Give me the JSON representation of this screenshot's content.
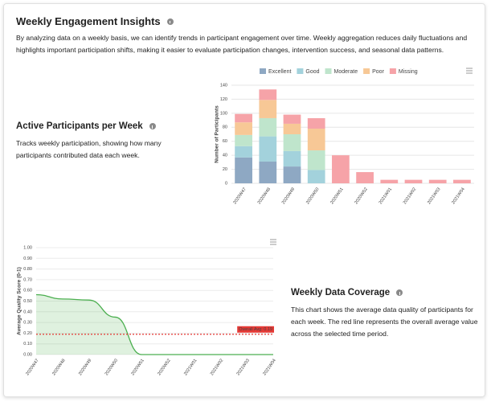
{
  "header": {
    "title": "Weekly Engagement Insights",
    "description": "By analyzing data on a weekly basis, we can identify trends in participant engagement over time. Weekly aggregation reduces daily fluctuations and highlights important participation shifts, making it easier to evaluate participation changes, intervention success, and seasonal data patterns."
  },
  "sections": [
    {
      "title": "Active Participants per Week",
      "description": "Tracks weekly participation, showing how many participants contributed data each week."
    },
    {
      "title": "Weekly Data Coverage",
      "description": "This chart shows the average data quality of participants for each week. The red line represents the overall average value across the selected time period."
    }
  ],
  "chart_data": [
    {
      "type": "bar",
      "stacked": true,
      "ylabel": "Number of Participants",
      "categories": [
        "2020W47",
        "2020W48",
        "2020W49",
        "2020W50",
        "2020W51",
        "2020W52",
        "2021W01",
        "2021W02",
        "2021W03",
        "2021W04"
      ],
      "series": [
        {
          "name": "Excellent",
          "color": "#8ea8c3",
          "values": [
            37,
            31,
            24,
            0,
            0,
            0,
            0,
            0,
            0,
            0
          ]
        },
        {
          "name": "Good",
          "color": "#a3d2dc",
          "values": [
            16,
            36,
            22,
            19,
            0,
            0,
            0,
            0,
            0,
            0
          ]
        },
        {
          "name": "Moderate",
          "color": "#bfe5cc",
          "values": [
            16,
            26,
            24,
            28,
            0,
            0,
            0,
            0,
            0,
            0
          ]
        },
        {
          "name": "Poor",
          "color": "#f7c896",
          "values": [
            18,
            26,
            15,
            31,
            0,
            0,
            0,
            0,
            0,
            0
          ]
        },
        {
          "name": "Missing",
          "color": "#f6a3a8",
          "values": [
            12,
            15,
            13,
            15,
            40,
            16,
            5,
            5,
            5,
            5
          ]
        }
      ],
      "ylim": [
        0,
        140
      ],
      "yticks": [
        0,
        20,
        40,
        60,
        80,
        100,
        120,
        140
      ],
      "grid": true,
      "legend": "top"
    },
    {
      "type": "line",
      "area": true,
      "ylabel": "Average Quality Score (0-1)",
      "categories": [
        "2020W47",
        "2020W48",
        "2020W49",
        "2020W50",
        "2020W51",
        "2020W52",
        "2021W01",
        "2021W02",
        "2021W03",
        "2021W04"
      ],
      "values": [
        0.56,
        0.52,
        0.51,
        0.35,
        0.0,
        0.0,
        0.0,
        0.0,
        0.0,
        0.0
      ],
      "color": "#4caf50",
      "reference_line": {
        "value": 0.19,
        "label": "Overall Avg: 0.19",
        "color": "#e53935"
      },
      "ylim": [
        0,
        1
      ],
      "yticks": [
        {
          "value": 0,
          "label": "0.00"
        },
        {
          "value": 0.1,
          "label": "0.10"
        },
        {
          "value": 0.2,
          "label": "0.20"
        },
        {
          "value": 0.3,
          "label": "0.30"
        },
        {
          "value": 0.4,
          "label": "0.40"
        },
        {
          "value": 0.5,
          "label": "0.50"
        },
        {
          "value": 0.6,
          "label": "0.60"
        },
        {
          "value": 0.7,
          "label": "0.70"
        },
        {
          "value": 0.8,
          "label": "0.80"
        },
        {
          "value": 0.9,
          "label": "0.90"
        },
        {
          "value": 1,
          "label": "1.00"
        }
      ],
      "grid": true
    }
  ]
}
